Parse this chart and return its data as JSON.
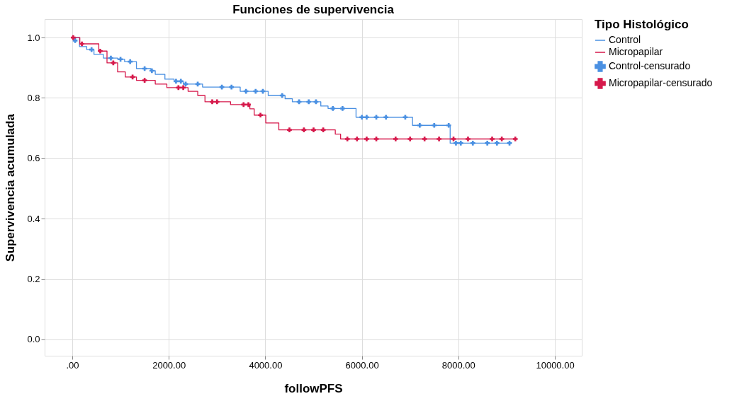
{
  "chart_data": {
    "type": "step",
    "title": "Funciones de supervivencia",
    "xlabel": "followPFS",
    "ylabel": "Supervivencia acumulada",
    "legend_title": "Tipo Histológico",
    "legend": "top right",
    "grid": true,
    "xlim": [
      -572,
      10557
    ],
    "ylim": [
      -0.054,
      1.061
    ],
    "xticks": [
      {
        "value": 0,
        "label": ".00"
      },
      {
        "value": 2000,
        "label": "2000.00"
      },
      {
        "value": 4000,
        "label": "4000.00"
      },
      {
        "value": 6000,
        "label": "6000.00"
      },
      {
        "value": 8000,
        "label": "8000.00"
      },
      {
        "value": 10000,
        "label": "10000.00"
      }
    ],
    "yticks": [
      {
        "value": 0,
        "label": "0.0"
      },
      0.2,
      0.4,
      0.6,
      0.8,
      {
        "value": 1,
        "label": "1.0"
      }
    ],
    "series": [
      {
        "name": "Control",
        "color": "#4a90e2",
        "x": [
          0,
          150,
          300,
          450,
          645,
          940,
          1085,
          1330,
          1630,
          1720,
          1920,
          2110,
          2300,
          2700,
          3480,
          4060,
          4410,
          4560,
          5150,
          5300,
          5880,
          7050,
          7830,
          9060
        ],
        "values": [
          1.0,
          0.97,
          0.96,
          0.944,
          0.932,
          0.928,
          0.92,
          0.897,
          0.89,
          0.878,
          0.862,
          0.855,
          0.846,
          0.836,
          0.822,
          0.808,
          0.797,
          0.787,
          0.773,
          0.765,
          0.736,
          0.709,
          0.65,
          0.65
        ]
      },
      {
        "name": "Micropapilar",
        "color": "#d6194b",
        "x": [
          0,
          157,
          550,
          720,
          940,
          1100,
          1330,
          1720,
          1960,
          2400,
          2600,
          2750,
          3280,
          3680,
          3770,
          4010,
          4280,
          5450,
          5560,
          9180
        ],
        "values": [
          1.0,
          0.979,
          0.955,
          0.916,
          0.886,
          0.869,
          0.858,
          0.846,
          0.834,
          0.822,
          0.808,
          0.787,
          0.778,
          0.764,
          0.743,
          0.717,
          0.694,
          0.68,
          0.664,
          0.664
        ]
      },
      {
        "name": "Control-censurado",
        "type": "scatter",
        "marker": "cross",
        "color": "#4a90e2",
        "x": [
          60,
          400,
          800,
          1000,
          1200,
          1500,
          1650,
          2150,
          2250,
          2350,
          2600,
          3100,
          3300,
          3600,
          3800,
          3950,
          4350,
          4700,
          4900,
          5050,
          5400,
          5600,
          6000,
          6100,
          6300,
          6500,
          6900,
          7200,
          7500,
          7800,
          7950,
          8050,
          8300,
          8600,
          8800,
          9060
        ],
        "values": [
          0.99,
          0.96,
          0.932,
          0.928,
          0.92,
          0.897,
          0.89,
          0.855,
          0.855,
          0.846,
          0.846,
          0.836,
          0.836,
          0.822,
          0.822,
          0.822,
          0.808,
          0.787,
          0.787,
          0.787,
          0.765,
          0.765,
          0.736,
          0.736,
          0.736,
          0.736,
          0.736,
          0.709,
          0.709,
          0.709,
          0.65,
          0.65,
          0.65,
          0.65,
          0.65,
          0.65
        ]
      },
      {
        "name": "Micropapilar-censurado",
        "type": "scatter",
        "marker": "cross",
        "color": "#d6194b",
        "x": [
          20,
          200,
          580,
          850,
          1250,
          1500,
          2200,
          2300,
          2900,
          3000,
          3550,
          3650,
          3900,
          4500,
          4800,
          5000,
          5200,
          5700,
          5900,
          6100,
          6300,
          6700,
          7000,
          7300,
          7600,
          7900,
          8200,
          8700,
          8900,
          9180
        ],
        "values": [
          1.0,
          0.979,
          0.955,
          0.916,
          0.869,
          0.858,
          0.834,
          0.834,
          0.787,
          0.787,
          0.778,
          0.778,
          0.743,
          0.694,
          0.694,
          0.694,
          0.694,
          0.664,
          0.664,
          0.664,
          0.664,
          0.664,
          0.664,
          0.664,
          0.664,
          0.664,
          0.664,
          0.664,
          0.664,
          0.664
        ]
      }
    ]
  }
}
